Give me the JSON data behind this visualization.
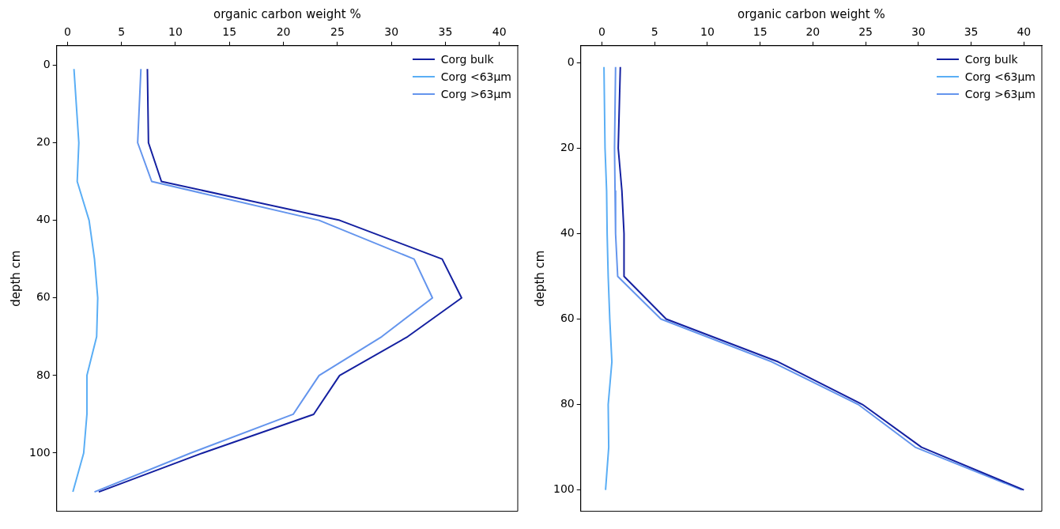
{
  "chart_data": [
    {
      "type": "line",
      "orientation": "horizontal",
      "xlabel": "organic carbon weight %",
      "ylabel": "depth cm",
      "x": [
        1,
        20,
        30,
        40,
        50,
        60,
        70,
        80,
        90,
        100,
        110
      ],
      "series": [
        {
          "name": "Corg bulk",
          "color": "#1420a0",
          "values": [
            7.4,
            7.5,
            8.7,
            25.2,
            34.7,
            36.5,
            31.5,
            25.2,
            22.8,
            12.5,
            2.9
          ]
        },
        {
          "name": "Corg <63µm",
          "color": "#5aaef5",
          "values": [
            0.6,
            1.05,
            0.9,
            2.0,
            2.5,
            2.8,
            2.7,
            1.8,
            1.8,
            1.5,
            0.5
          ]
        },
        {
          "name": "Corg >63µm",
          "color": "#6495ed",
          "values": [
            6.8,
            6.5,
            7.8,
            23.3,
            32.1,
            33.8,
            29.1,
            23.3,
            20.9,
            11.4,
            2.5
          ]
        }
      ],
      "xlim": [
        -1,
        41.7
      ],
      "xticks": [
        0,
        5,
        10,
        15,
        20,
        25,
        30,
        35,
        40
      ],
      "ylim": [
        115,
        -5
      ],
      "yticks": [
        0,
        20,
        40,
        60,
        80,
        100
      ],
      "legend": "top right",
      "grid": false,
      "marker": "none",
      "line_style": "solid"
    },
    {
      "type": "line",
      "orientation": "horizontal",
      "xlabel": "organic carbon weight %",
      "ylabel": "depth cm",
      "x": [
        1,
        20,
        30,
        40,
        50,
        60,
        70,
        80,
        90,
        100
      ],
      "series": [
        {
          "name": "Corg bulk",
          "color": "#1420a0",
          "values": [
            1.75,
            1.55,
            1.9,
            2.1,
            2.1,
            6.1,
            16.7,
            24.7,
            30.3,
            40
          ]
        },
        {
          "name": "Corg <63µm",
          "color": "#5aaef5",
          "values": [
            0.2,
            0.3,
            0.45,
            0.5,
            0.6,
            0.75,
            0.95,
            0.6,
            0.65,
            0.35
          ]
        },
        {
          "name": "Corg >63µm",
          "color": "#6495ed",
          "values": [
            1.3,
            1.2,
            1.25,
            1.3,
            1.5,
            5.6,
            16.1,
            24.3,
            29.7,
            39.8
          ]
        }
      ],
      "xlim": [
        -2,
        41.7
      ],
      "xticks": [
        0,
        5,
        10,
        15,
        20,
        25,
        30,
        35,
        40
      ],
      "ylim": [
        105,
        -4
      ],
      "yticks": [
        0,
        20,
        40,
        60,
        80,
        100
      ],
      "legend": "top right",
      "grid": false,
      "marker": "none",
      "line_style": "solid"
    }
  ]
}
